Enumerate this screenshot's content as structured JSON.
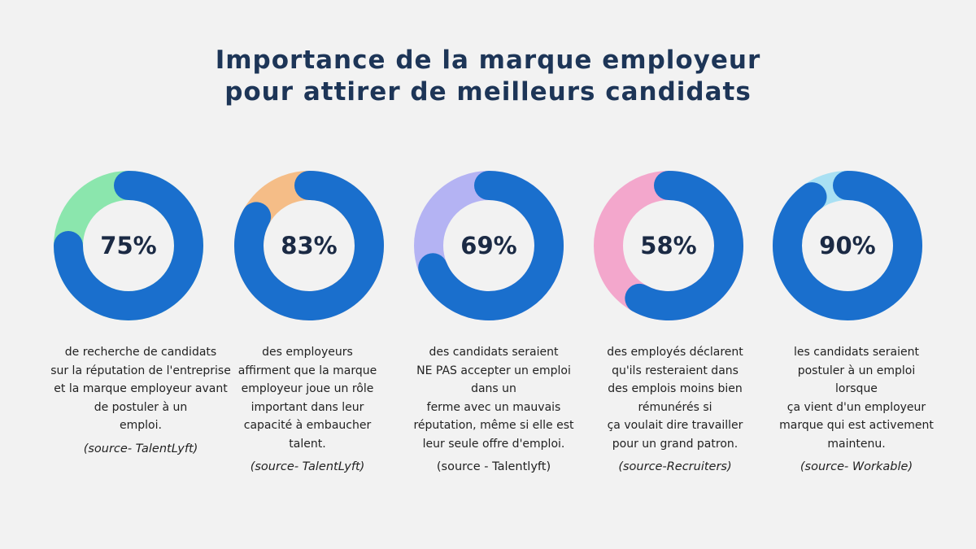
{
  "title": {
    "line1": "Importance de la marque employeur",
    "line2": "pour attirer de meilleurs candidats"
  },
  "colors": {
    "primary": "#1a6fcd",
    "text": "#1d3557"
  },
  "chart_data": {
    "type": "donut",
    "title": "Importance de la marque employeur pour attirer de meilleurs candidats",
    "items": [
      {
        "value": 75,
        "label": "75%",
        "remainder_color": "#8be6ad",
        "lines": [
          "de recherche de candidats",
          "sur la réputation de l'entreprise",
          "et la marque employeur avant",
          "de postuler à un",
          "emploi."
        ],
        "source": "(source- TalentLyft)"
      },
      {
        "value": 83,
        "label": "83%",
        "remainder_color": "#f5bd87",
        "lines": [
          "des employeurs",
          "affirment que la marque",
          "employeur joue un rôle",
          "important dans leur",
          "capacité à embaucher",
          "talent."
        ],
        "source": "(source- TalentLyft)"
      },
      {
        "value": 69,
        "label": "69%",
        "remainder_color": "#b4b3f3",
        "lines": [
          "des candidats seraient",
          "NE PAS accepter un emploi",
          "dans un",
          "ferme avec un mauvais",
          "réputation, même si elle est",
          "leur seule offre d'emploi."
        ],
        "source": "(source - Talentlyft)"
      },
      {
        "value": 58,
        "label": "58%",
        "remainder_color": "#f3a7cc",
        "lines": [
          "des employés déclarent",
          "qu'ils resteraient dans",
          "des emplois moins bien",
          "rémunérés si",
          "ça voulait dire travailler",
          "pour un grand patron."
        ],
        "source": "(source-Recruiters)"
      },
      {
        "value": 90,
        "label": "90%",
        "remainder_color": "#a9e0f3",
        "lines": [
          "les candidats seraient",
          "postuler à un emploi",
          "lorsque",
          "ça vient d'un employeur",
          "marque qui est activement",
          "maintenu."
        ],
        "source": "(source- Workable)"
      }
    ]
  }
}
